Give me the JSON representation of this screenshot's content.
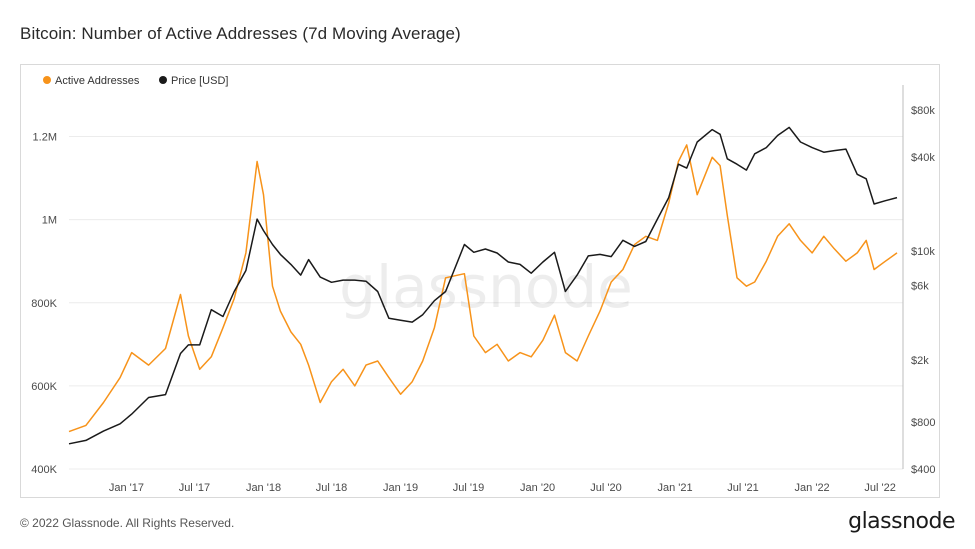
{
  "title": "Bitcoin: Number of Active Addresses (7d Moving Average)",
  "footer": "© 2022 Glassnode. All Rights Reserved.",
  "brand": "glassnode",
  "watermark": "glassnode",
  "chart_data": {
    "type": "line",
    "title": "Bitcoin: Number of Active Addresses (7d Moving Average)",
    "legend": {
      "placement": "top-left",
      "entries": [
        "Active Addresses",
        "Price [USD]"
      ]
    },
    "x_range": [
      "2016-08-01",
      "2022-08-31"
    ],
    "x_ticks": [
      "Jan '17",
      "Jul '17",
      "Jan '18",
      "Jul '18",
      "Jan '19",
      "Jul '19",
      "Jan '20",
      "Jul '20",
      "Jan '21",
      "Jul '21",
      "Jan '22",
      "Jul '22"
    ],
    "y_left": {
      "range": [
        400000,
        1300000
      ],
      "ticks": [
        400000,
        600000,
        800000,
        1000000,
        1200000
      ],
      "tick_labels": [
        "400K",
        "600K",
        "800K",
        "1M",
        "1.2M"
      ]
    },
    "y_right": {
      "scale": "log",
      "range": [
        400,
        100000
      ],
      "ticks": [
        400,
        800,
        2000,
        6000,
        10000,
        40000,
        80000
      ],
      "tick_labels": [
        "$400",
        "$800",
        "$2k",
        "$6k",
        "$10k",
        "$40k",
        "$80k"
      ]
    },
    "grid": "horizontal",
    "series": [
      {
        "name": "Active Addresses",
        "axis": "left",
        "color": "#f7931a",
        "x": [
          "2016-08-01",
          "2016-09-15",
          "2016-11-01",
          "2016-12-15",
          "2017-01-15",
          "2017-03-01",
          "2017-04-15",
          "2017-05-25",
          "2017-06-15",
          "2017-07-15",
          "2017-08-15",
          "2017-09-15",
          "2017-10-15",
          "2017-11-15",
          "2017-12-15",
          "2018-01-01",
          "2018-01-25",
          "2018-02-15",
          "2018-03-15",
          "2018-04-10",
          "2018-05-01",
          "2018-06-01",
          "2018-07-01",
          "2018-08-01",
          "2018-09-01",
          "2018-10-01",
          "2018-11-01",
          "2018-12-01",
          "2019-01-01",
          "2019-02-01",
          "2019-03-01",
          "2019-04-01",
          "2019-05-01",
          "2019-06-20",
          "2019-07-15",
          "2019-08-15",
          "2019-09-15",
          "2019-10-15",
          "2019-11-15",
          "2019-12-15",
          "2020-01-15",
          "2020-02-15",
          "2020-03-15",
          "2020-04-15",
          "2020-05-15",
          "2020-06-15",
          "2020-07-15",
          "2020-08-15",
          "2020-09-15",
          "2020-10-15",
          "2020-11-15",
          "2020-12-15",
          "2021-01-10",
          "2021-02-01",
          "2021-03-01",
          "2021-04-10",
          "2021-05-01",
          "2021-05-20",
          "2021-06-15",
          "2021-07-10",
          "2021-08-01",
          "2021-09-01",
          "2021-10-01",
          "2021-11-01",
          "2021-12-01",
          "2022-01-01",
          "2022-02-01",
          "2022-03-01",
          "2022-04-01",
          "2022-05-01",
          "2022-05-25",
          "2022-06-15",
          "2022-07-15",
          "2022-08-15"
        ],
        "values": [
          490000,
          505000,
          560000,
          620000,
          680000,
          650000,
          690000,
          820000,
          720000,
          640000,
          670000,
          740000,
          810000,
          920000,
          1140000,
          1060000,
          840000,
          780000,
          730000,
          700000,
          650000,
          560000,
          610000,
          640000,
          600000,
          650000,
          660000,
          620000,
          580000,
          610000,
          660000,
          740000,
          860000,
          870000,
          720000,
          680000,
          700000,
          660000,
          680000,
          670000,
          710000,
          770000,
          680000,
          660000,
          720000,
          780000,
          850000,
          880000,
          940000,
          960000,
          950000,
          1040000,
          1140000,
          1180000,
          1060000,
          1150000,
          1130000,
          1010000,
          860000,
          840000,
          850000,
          900000,
          960000,
          990000,
          950000,
          920000,
          960000,
          930000,
          900000,
          920000,
          950000,
          880000,
          900000,
          920000
        ]
      },
      {
        "name": "Price [USD]",
        "axis": "right",
        "color": "#1a1a1a",
        "x": [
          "2016-08-01",
          "2016-09-15",
          "2016-11-01",
          "2016-12-15",
          "2017-01-15",
          "2017-03-01",
          "2017-04-15",
          "2017-05-25",
          "2017-06-15",
          "2017-07-15",
          "2017-08-15",
          "2017-09-15",
          "2017-10-15",
          "2017-11-15",
          "2017-12-15",
          "2018-01-01",
          "2018-01-25",
          "2018-02-15",
          "2018-03-15",
          "2018-04-10",
          "2018-05-01",
          "2018-06-01",
          "2018-07-01",
          "2018-08-01",
          "2018-09-01",
          "2018-10-01",
          "2018-11-01",
          "2018-12-01",
          "2019-01-01",
          "2019-02-01",
          "2019-03-01",
          "2019-04-01",
          "2019-05-01",
          "2019-06-20",
          "2019-07-15",
          "2019-08-15",
          "2019-09-15",
          "2019-10-15",
          "2019-11-15",
          "2019-12-15",
          "2020-01-15",
          "2020-02-15",
          "2020-03-15",
          "2020-04-15",
          "2020-05-15",
          "2020-06-15",
          "2020-07-15",
          "2020-08-15",
          "2020-09-15",
          "2020-10-15",
          "2020-11-15",
          "2020-12-15",
          "2021-01-10",
          "2021-02-01",
          "2021-03-01",
          "2021-04-10",
          "2021-05-01",
          "2021-05-20",
          "2021-06-15",
          "2021-07-10",
          "2021-08-01",
          "2021-09-01",
          "2021-10-01",
          "2021-11-01",
          "2021-12-01",
          "2022-01-01",
          "2022-02-01",
          "2022-03-01",
          "2022-04-01",
          "2022-05-01",
          "2022-05-25",
          "2022-06-15",
          "2022-07-15",
          "2022-08-15"
        ],
        "values": [
          580,
          610,
          700,
          780,
          900,
          1150,
          1200,
          2200,
          2500,
          2500,
          4200,
          3800,
          5500,
          7500,
          16000,
          13500,
          11000,
          9500,
          8200,
          7000,
          8800,
          6800,
          6300,
          6500,
          6500,
          6400,
          5500,
          3700,
          3600,
          3500,
          3900,
          4800,
          5500,
          11000,
          9800,
          10300,
          9700,
          8500,
          8200,
          7200,
          8500,
          9800,
          5500,
          7000,
          9300,
          9500,
          9200,
          11700,
          10700,
          11500,
          16000,
          22000,
          36000,
          34000,
          50000,
          60000,
          56000,
          39000,
          36000,
          33000,
          42000,
          46000,
          55000,
          62000,
          50000,
          46000,
          43000,
          44000,
          45000,
          31000,
          29000,
          20000,
          21000,
          22000
        ]
      }
    ]
  }
}
